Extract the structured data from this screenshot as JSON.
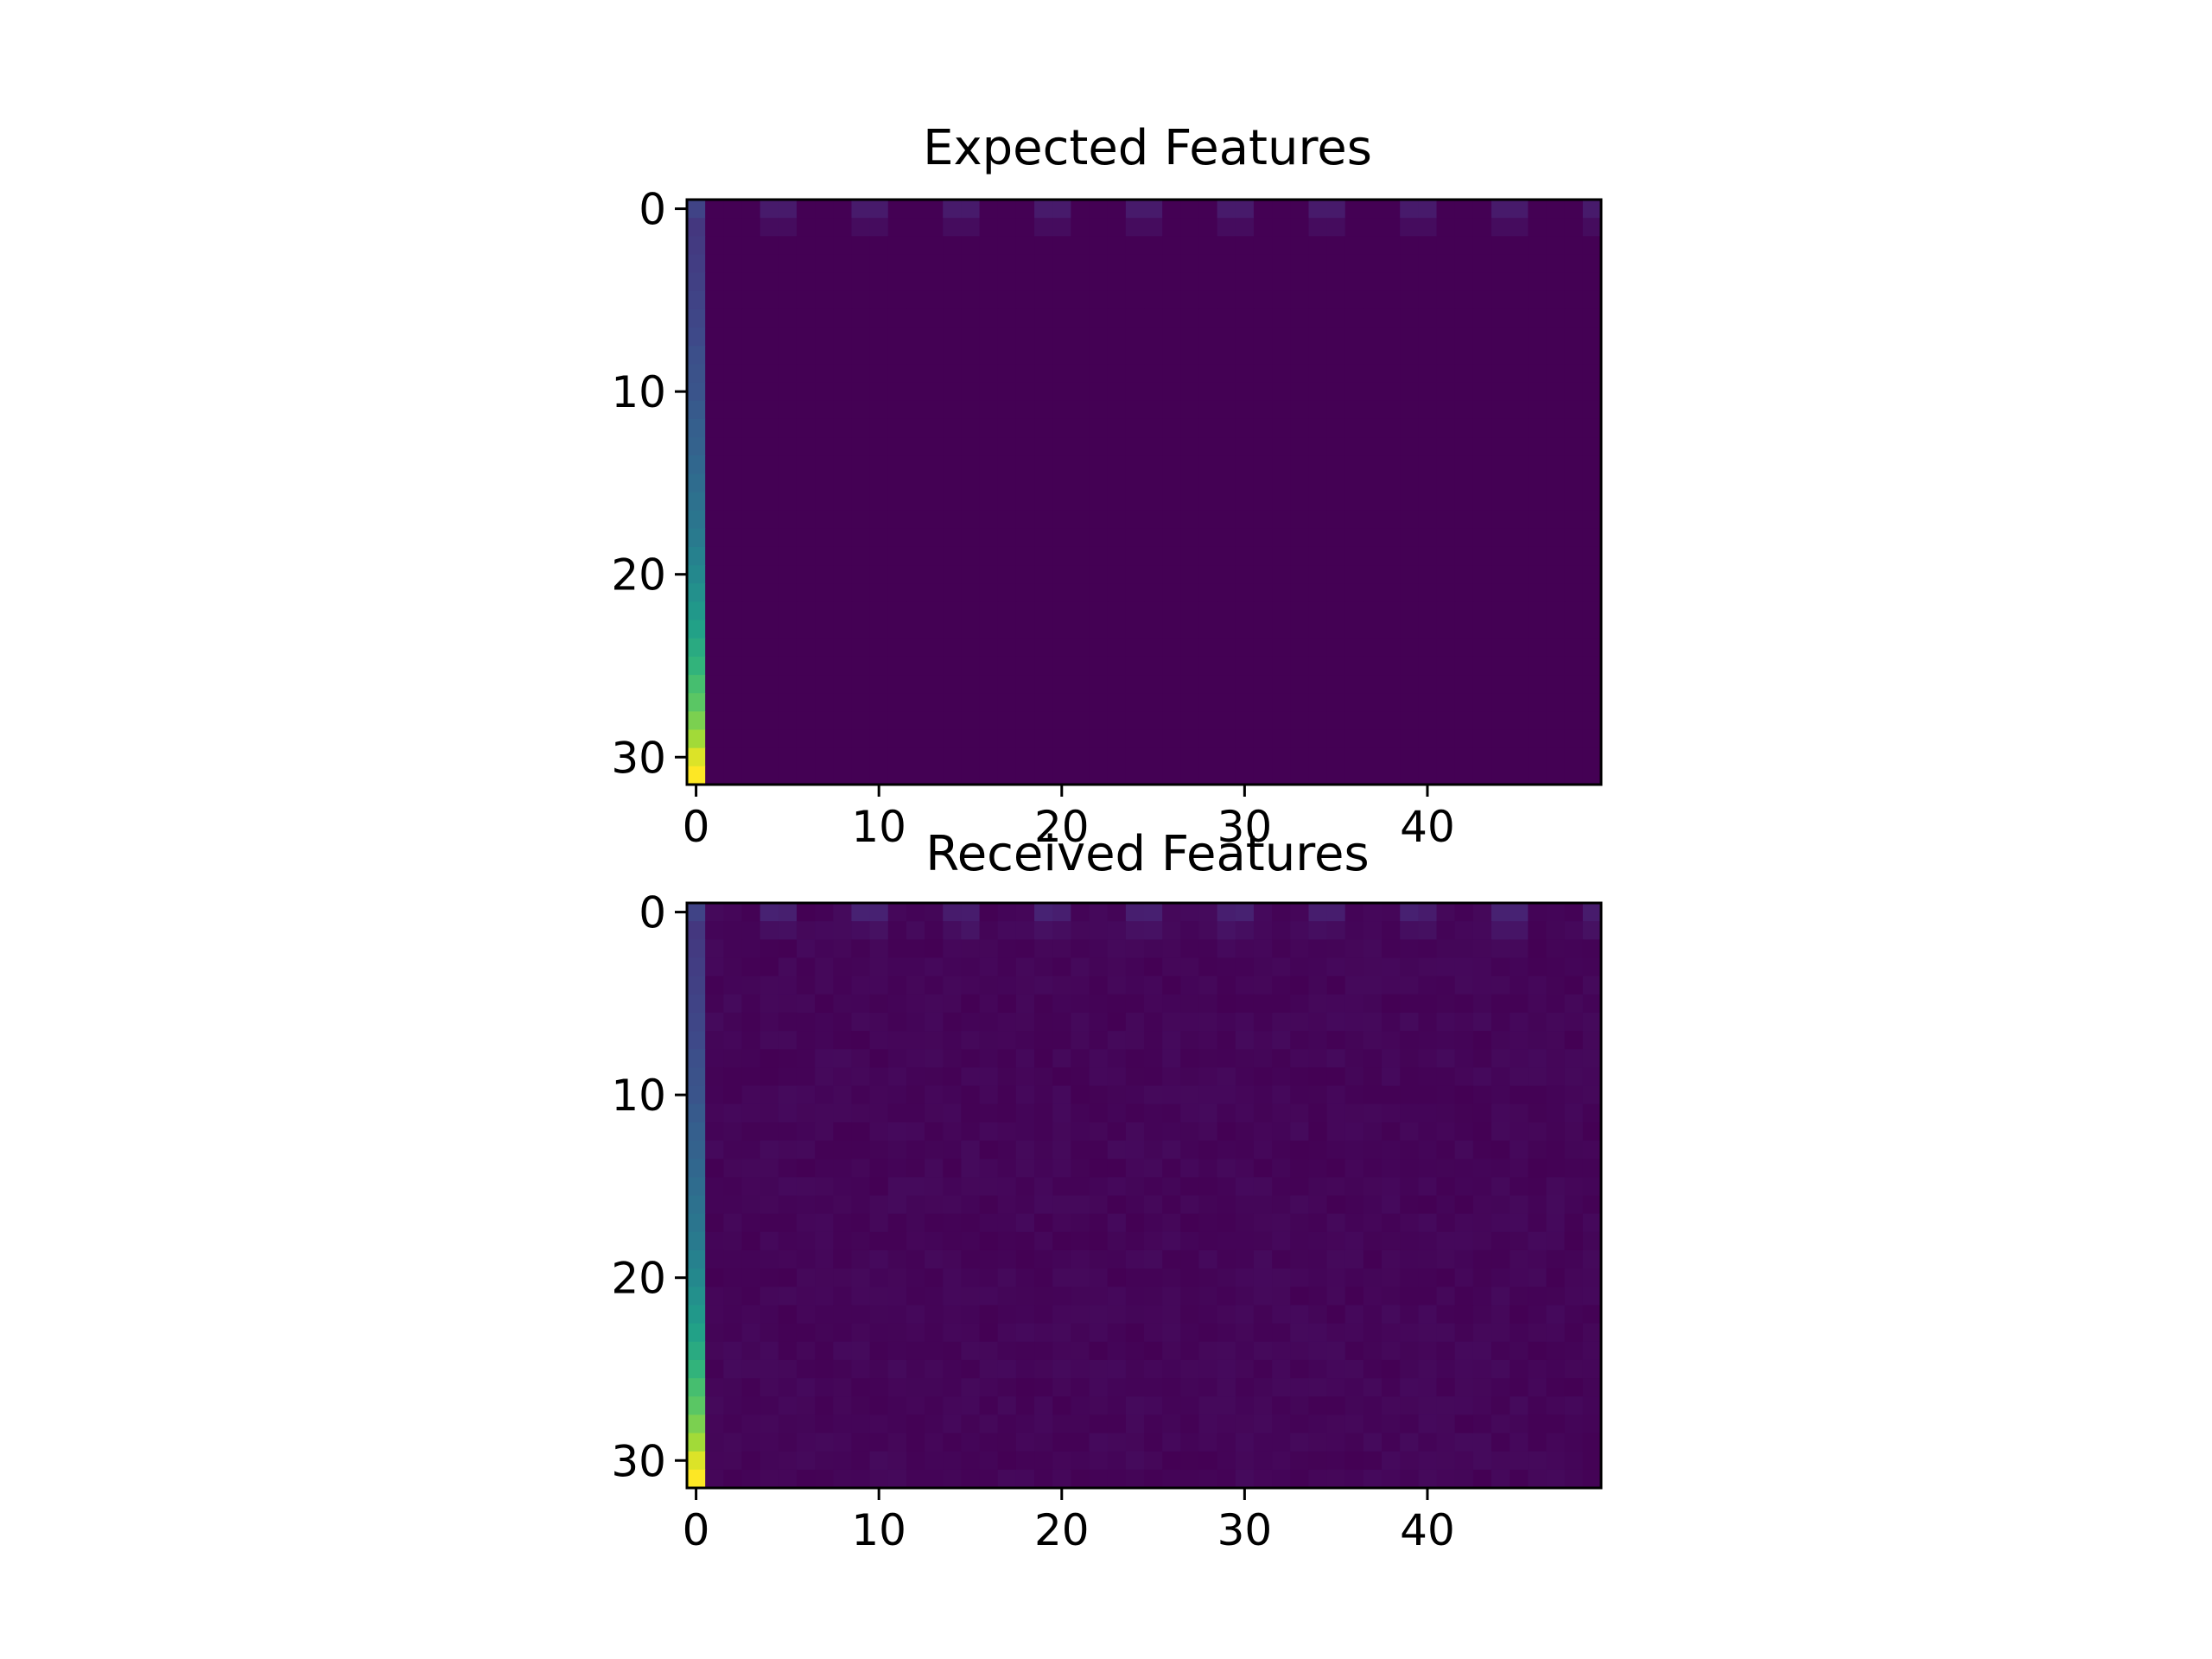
{
  "chart_data": [
    {
      "type": "heatmap",
      "title": "Expected Features",
      "xlabel": "",
      "ylabel": "",
      "rows": 32,
      "cols": 50,
      "colormap": "viridis",
      "x_ticks": [
        0,
        10,
        20,
        30,
        40
      ],
      "y_ticks": [
        0,
        10,
        20,
        30
      ],
      "xlim": [
        -0.5,
        49.5
      ],
      "ylim": [
        31.5,
        -0.5
      ],
      "value_range": [
        0,
        1
      ],
      "first_column": [
        0.2,
        0.16,
        0.17,
        0.18,
        0.19,
        0.2,
        0.21,
        0.22,
        0.24,
        0.25,
        0.26,
        0.28,
        0.3,
        0.31,
        0.33,
        0.35,
        0.37,
        0.39,
        0.41,
        0.44,
        0.47,
        0.5,
        0.53,
        0.57,
        0.61,
        0.65,
        0.7,
        0.74,
        0.8,
        0.86,
        0.95,
        1.0
      ],
      "background_value": 0.0,
      "periodic_row0": {
        "period": 5,
        "start": 4,
        "width": 2,
        "value": 0.07
      },
      "periodic_row1": {
        "period": 5,
        "start": 4,
        "width": 2,
        "value": 0.03
      },
      "noise_amplitude": 0.0
    },
    {
      "type": "heatmap",
      "title": "Received Features",
      "xlabel": "",
      "ylabel": "",
      "rows": 32,
      "cols": 50,
      "colormap": "viridis",
      "x_ticks": [
        0,
        10,
        20,
        30,
        40
      ],
      "y_ticks": [
        0,
        10,
        20,
        30
      ],
      "xlim": [
        -0.5,
        49.5
      ],
      "ylim": [
        31.5,
        -0.5
      ],
      "value_range": [
        0,
        1
      ],
      "first_column": [
        0.2,
        0.16,
        0.17,
        0.18,
        0.19,
        0.2,
        0.21,
        0.22,
        0.24,
        0.25,
        0.26,
        0.28,
        0.3,
        0.31,
        0.33,
        0.35,
        0.37,
        0.39,
        0.41,
        0.44,
        0.47,
        0.5,
        0.53,
        0.57,
        0.61,
        0.65,
        0.7,
        0.74,
        0.8,
        0.86,
        0.95,
        1.0
      ],
      "background_value": 0.0,
      "periodic_row0": {
        "period": 5,
        "start": 4,
        "width": 2,
        "value": 0.07
      },
      "periodic_row1": {
        "period": 5,
        "start": 4,
        "width": 2,
        "value": 0.03
      },
      "noise_amplitude": 0.025
    }
  ]
}
